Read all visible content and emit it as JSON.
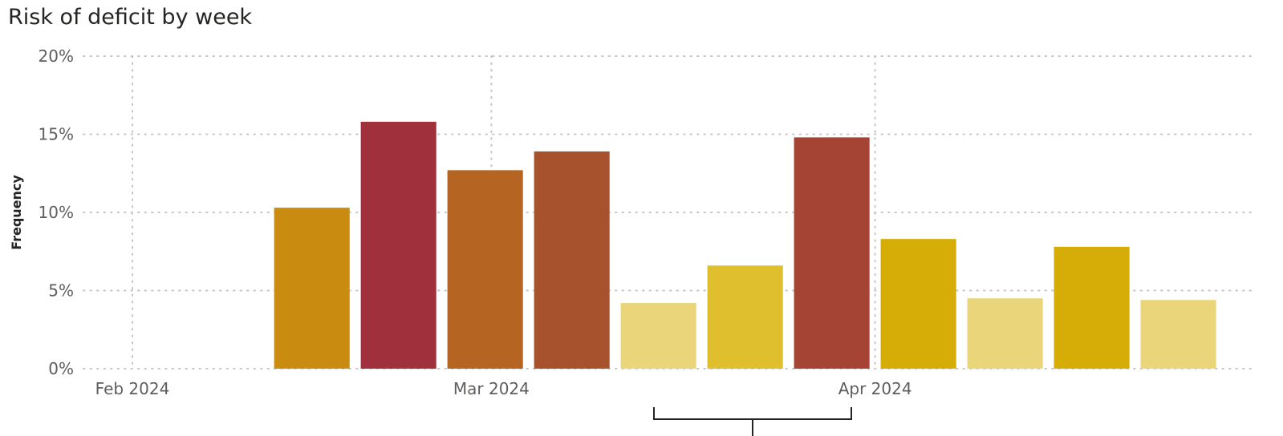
{
  "chart_data": {
    "type": "bar",
    "title": "Risk of deficit by week",
    "xlabel": "",
    "ylabel": "Frequency",
    "ylim": [
      0,
      20
    ],
    "yticks": [
      "0%",
      "5%",
      "10%",
      "15%",
      "20%"
    ],
    "x_axis": {
      "type": "date",
      "range": [
        "2024-02-01",
        "2024-04-30"
      ]
    },
    "x_ticks": [
      {
        "label": "Feb 2024",
        "date": "2024-02-01"
      },
      {
        "label": "Mar 2024",
        "date": "2024-03-01"
      },
      {
        "label": "Apr 2024",
        "date": "2024-04-01"
      }
    ],
    "bars": [
      {
        "week": "2024-02-12",
        "value": 10.3,
        "color": "#c98b10"
      },
      {
        "week": "2024-02-19",
        "value": 15.8,
        "color": "#a0303c"
      },
      {
        "week": "2024-02-26",
        "value": 12.7,
        "color": "#b56421"
      },
      {
        "week": "2024-03-04",
        "value": 13.9,
        "color": "#a8512d"
      },
      {
        "week": "2024-03-11",
        "value": 4.2,
        "color": "#ead57a"
      },
      {
        "week": "2024-03-18",
        "value": 6.6,
        "color": "#dfbf2e"
      },
      {
        "week": "2024-03-25",
        "value": 14.8,
        "color": "#a54334"
      },
      {
        "week": "2024-04-01",
        "value": 8.3,
        "color": "#d5ad06"
      },
      {
        "week": "2024-04-08",
        "value": 4.5,
        "color": "#ead57a"
      },
      {
        "week": "2024-04-15",
        "value": 7.8,
        "color": "#d5ad06"
      },
      {
        "week": "2024-04-22",
        "value": 4.4,
        "color": "#ead57a"
      }
    ],
    "grid": true,
    "legend": "none"
  }
}
